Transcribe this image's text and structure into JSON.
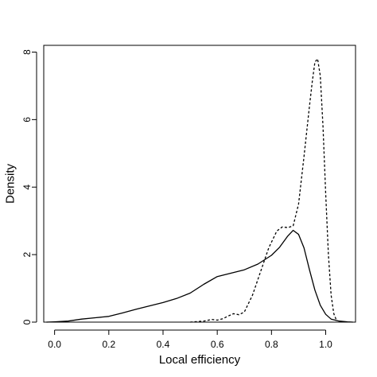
{
  "chart_data": {
    "type": "line",
    "title": "",
    "xlabel": "Local efficiency",
    "ylabel": "Density",
    "xlim": [
      -0.04,
      1.11
    ],
    "ylim": [
      0,
      8.2
    ],
    "x_ticks": [
      0.0,
      0.2,
      0.4,
      0.6,
      0.8,
      1.0
    ],
    "x_tick_labels": [
      "0.0",
      "0.2",
      "0.4",
      "0.6",
      "0.8",
      "1.0"
    ],
    "y_ticks": [
      0,
      2,
      4,
      6,
      8
    ],
    "y_tick_labels": [
      "0",
      "2",
      "4",
      "6",
      "8"
    ],
    "grid": false,
    "legend": "none",
    "baseline": {
      "y": 0,
      "color": "#bbbbbb"
    },
    "series": [
      {
        "style": "solid",
        "color": "#000000",
        "x": [
          -0.03,
          0.0,
          0.05,
          0.1,
          0.15,
          0.2,
          0.25,
          0.3,
          0.35,
          0.4,
          0.45,
          0.5,
          0.55,
          0.6,
          0.65,
          0.7,
          0.75,
          0.8,
          0.83,
          0.86,
          0.88,
          0.9,
          0.92,
          0.94,
          0.96,
          0.98,
          1.0,
          1.02,
          1.05,
          1.08,
          1.1
        ],
        "y": [
          0.0,
          0.01,
          0.03,
          0.09,
          0.13,
          0.17,
          0.27,
          0.38,
          0.48,
          0.58,
          0.7,
          0.86,
          1.12,
          1.35,
          1.45,
          1.55,
          1.72,
          1.98,
          2.22,
          2.55,
          2.72,
          2.6,
          2.2,
          1.55,
          0.95,
          0.5,
          0.23,
          0.09,
          0.03,
          0.01,
          0.0
        ]
      },
      {
        "style": "dashed",
        "color": "#000000",
        "x": [
          0.5,
          0.55,
          0.58,
          0.6,
          0.62,
          0.64,
          0.66,
          0.68,
          0.7,
          0.73,
          0.76,
          0.79,
          0.82,
          0.84,
          0.86,
          0.88,
          0.9,
          0.92,
          0.94,
          0.95,
          0.96,
          0.97,
          0.98,
          0.99,
          1.0,
          1.01,
          1.02,
          1.03,
          1.04
        ],
        "y": [
          0.0,
          0.03,
          0.08,
          0.06,
          0.1,
          0.18,
          0.25,
          0.22,
          0.3,
          0.8,
          1.5,
          2.2,
          2.7,
          2.82,
          2.8,
          2.85,
          3.5,
          4.9,
          6.4,
          7.1,
          7.7,
          7.8,
          7.3,
          5.8,
          3.8,
          2.0,
          0.8,
          0.25,
          0.05
        ]
      }
    ]
  }
}
